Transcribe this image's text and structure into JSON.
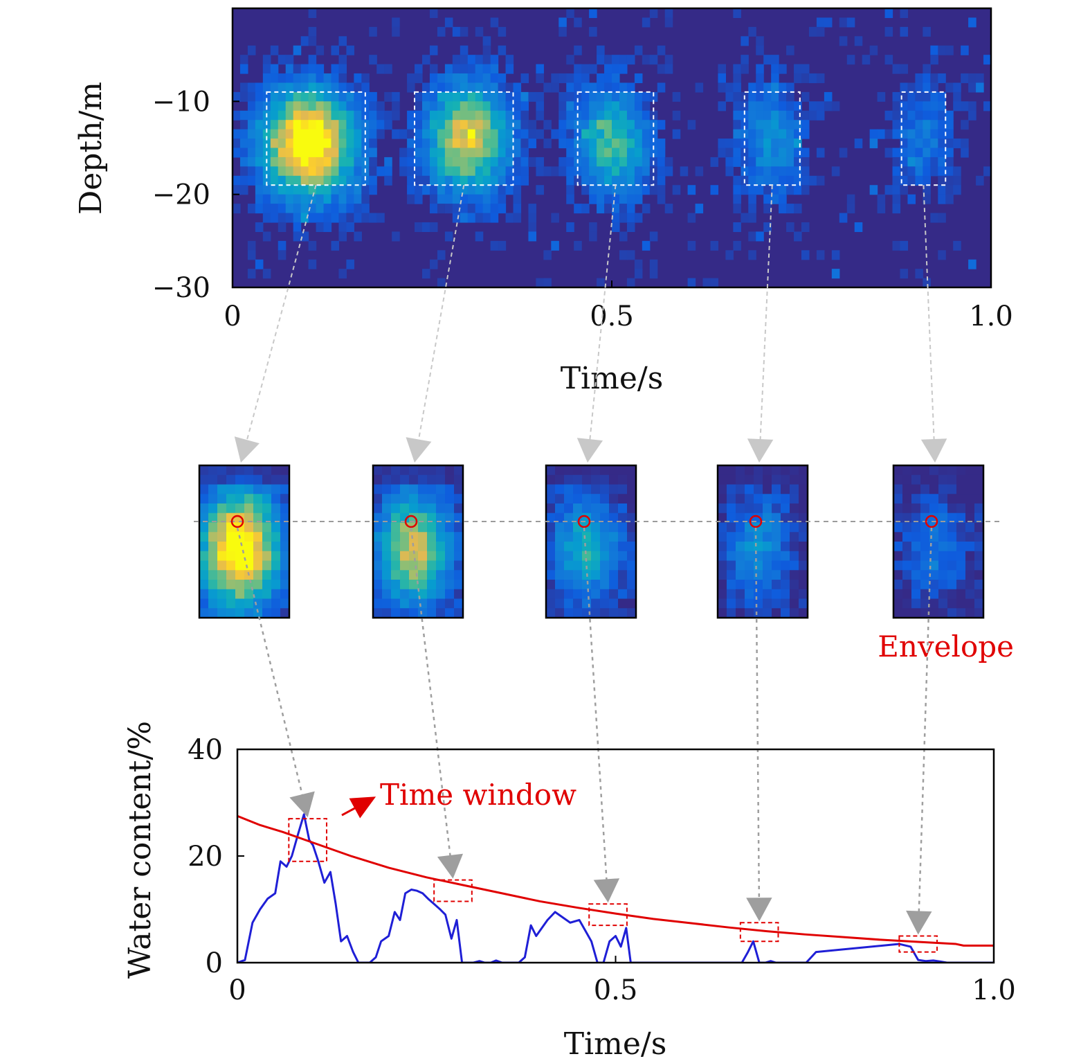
{
  "chart_data": [
    {
      "type": "heatmap",
      "panel": "top",
      "xlabel": "Time/s",
      "ylabel": "Depth/m",
      "xlim": [
        0,
        1.0
      ],
      "ylim": [
        -30,
        0
      ],
      "xticks": [
        "0",
        "0.5",
        "1.0"
      ],
      "yticks": [
        "−10",
        "−20",
        "−30"
      ],
      "colormap": "parula",
      "blobs": [
        {
          "t": 0.1,
          "depth": -14.5,
          "peak": 1.0
        },
        {
          "t": 0.31,
          "depth": -14.0,
          "peak": 0.78
        },
        {
          "t": 0.5,
          "depth": -14.5,
          "peak": 0.55
        },
        {
          "t": 0.71,
          "depth": -14.0,
          "peak": 0.35
        },
        {
          "t": 0.91,
          "depth": -14.0,
          "peak": 0.25
        }
      ],
      "windows": [
        {
          "t0": 0.045,
          "t1": 0.175
        },
        {
          "t0": 0.24,
          "t1": 0.37
        },
        {
          "t0": 0.455,
          "t1": 0.555
        },
        {
          "t0": 0.675,
          "t1": 0.748
        },
        {
          "t0": 0.882,
          "t1": 0.94
        }
      ],
      "window_depth": [
        -9,
        -19
      ]
    },
    {
      "type": "heatmap",
      "panel": "middle",
      "insets": [
        {
          "peak": 1.0
        },
        {
          "peak": 0.75
        },
        {
          "peak": 0.5
        },
        {
          "peak": 0.35
        },
        {
          "peak": 0.25
        }
      ]
    },
    {
      "type": "line",
      "panel": "bottom",
      "xlabel": "Time/s",
      "ylabel": "Water content/%",
      "xlim": [
        0,
        1.0
      ],
      "ylim": [
        0,
        40
      ],
      "xticks": [
        "0",
        "0.5",
        "1.0"
      ],
      "yticks": [
        "0",
        "20",
        "40"
      ],
      "series": [
        {
          "color": "#1f1fd6",
          "x": [
            0,
            0.01,
            0.02,
            0.03,
            0.04,
            0.05,
            0.057,
            0.065,
            0.072,
            0.08,
            0.088,
            0.095,
            0.1,
            0.107,
            0.115,
            0.123,
            0.13,
            0.137,
            0.145,
            0.153,
            0.16,
            0.168,
            0.175,
            0.183,
            0.19,
            0.2,
            0.208,
            0.215,
            0.222,
            0.23,
            0.237,
            0.245,
            0.252,
            0.26,
            0.268,
            0.275,
            0.283,
            0.29,
            0.297,
            0.305,
            0.312,
            0.32,
            0.327,
            0.335,
            0.342,
            0.35,
            0.357,
            0.365,
            0.372,
            0.38,
            0.388,
            0.395,
            0.41,
            0.42,
            0.44,
            0.452,
            0.46,
            0.468,
            0.476,
            0.484,
            0.492,
            0.5,
            0.507,
            0.514,
            0.52,
            0.528,
            0.536,
            0.545,
            0.56,
            0.66,
            0.667,
            0.675,
            0.682,
            0.69,
            0.698,
            0.705,
            0.712,
            0.72,
            0.74,
            0.752,
            0.765,
            0.875,
            0.89,
            0.9,
            0.91,
            0.92,
            0.93,
            0.938,
            0.945,
            0.955,
            1.0
          ],
          "y": [
            0,
            0.5,
            7.5,
            10,
            12,
            13,
            19,
            18,
            20,
            24,
            27.8,
            23,
            22,
            19,
            15,
            17,
            11,
            4,
            5,
            2,
            0,
            0,
            0,
            1,
            4,
            5,
            9.5,
            8,
            13,
            13.7,
            13.5,
            13,
            12,
            11,
            10,
            9,
            4.5,
            8,
            0,
            0,
            0,
            0.3,
            0,
            0,
            0.4,
            0,
            0,
            0,
            0,
            1,
            7,
            5,
            8,
            9.5,
            7.5,
            8,
            6,
            4,
            0,
            0,
            4,
            5,
            3,
            6.5,
            0,
            0,
            0,
            0,
            0,
            0,
            0,
            2,
            4,
            0,
            0,
            0.3,
            0,
            0,
            0,
            0,
            2,
            3.5,
            3,
            0.5,
            0.3,
            0.4,
            0.2,
            0,
            0,
            0,
            0
          ]
        },
        {
          "color": "#e00000",
          "x": [
            0,
            0.03,
            0.06,
            0.1,
            0.15,
            0.2,
            0.25,
            0.3,
            0.35,
            0.4,
            0.45,
            0.5,
            0.55,
            0.6,
            0.65,
            0.7,
            0.75,
            0.8,
            0.85,
            0.9,
            0.95,
            0.96,
            1.0
          ],
          "y": [
            27.5,
            25.8,
            24.5,
            22.5,
            20,
            17.8,
            16,
            14.5,
            13,
            11.5,
            10.3,
            9.2,
            8.2,
            7.4,
            6.6,
            5.9,
            5.3,
            4.8,
            4.3,
            3.9,
            3.5,
            3.2,
            3.2
          ]
        }
      ],
      "time_windows": [
        {
          "t0": 0.068,
          "t1": 0.118,
          "y0": 19,
          "y1": 27
        },
        {
          "t0": 0.26,
          "t1": 0.31,
          "y0": 11.5,
          "y1": 15.5
        },
        {
          "t0": 0.465,
          "t1": 0.515,
          "y0": 7,
          "y1": 11
        },
        {
          "t0": 0.665,
          "t1": 0.715,
          "y0": 4,
          "y1": 7.5
        },
        {
          "t0": 0.875,
          "t1": 0.925,
          "y0": 2,
          "y1": 5
        }
      ],
      "annotations": {
        "time_window": "Time window",
        "envelope": "Envelope"
      }
    }
  ]
}
